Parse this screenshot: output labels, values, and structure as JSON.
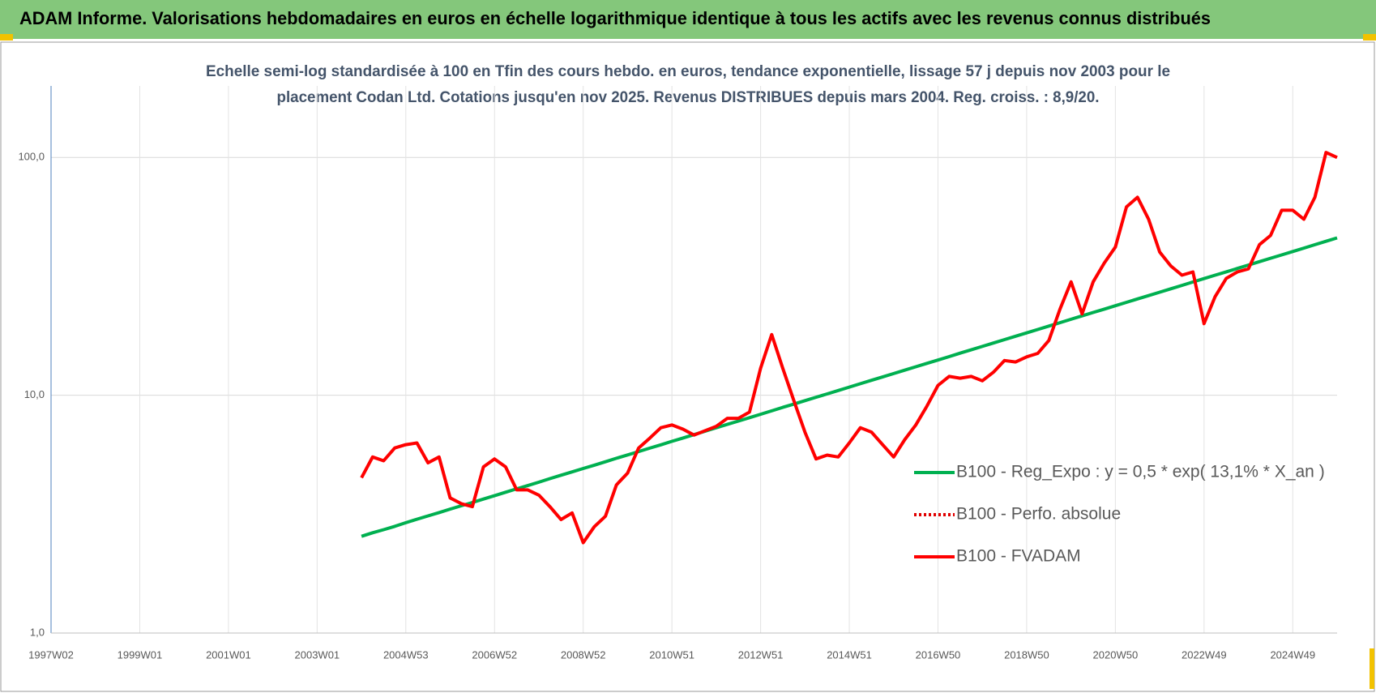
{
  "chart_data": {
    "type": "line",
    "title": "ADAM Informe. Valorisations hebdomadaires en euros en échelle logarithmique identique à tous les actifs avec les revenus connus distribués",
    "subtitle": [
      "Echelle semi-log standardisée à 100 en Tfin des cours hebdo. en euros, tendance exponentielle, lissage 57 j depuis nov 2003 pour le",
      "placement Codan Ltd. Cotations jusqu'en nov 2025. Revenus DISTRIBUES depuis mars 2004. Reg. croiss. : 8,9/20."
    ],
    "categories": [
      "1997W02",
      null,
      null,
      null,
      null,
      null,
      null,
      null,
      "1999W01",
      null,
      null,
      null,
      null,
      null,
      null,
      null,
      "2001W01",
      null,
      null,
      null,
      null,
      null,
      null,
      null,
      "2003W01",
      null,
      null,
      null,
      null,
      null,
      null,
      null,
      "2004W53",
      null,
      null,
      null,
      null,
      null,
      null,
      null,
      "2006W52",
      null,
      null,
      null,
      null,
      null,
      null,
      null,
      "2008W52",
      null,
      null,
      null,
      null,
      null,
      null,
      null,
      "2010W51",
      null,
      null,
      null,
      null,
      null,
      null,
      null,
      "2012W51",
      null,
      null,
      null,
      null,
      null,
      null,
      null,
      "2014W51",
      null,
      null,
      null,
      null,
      null,
      null,
      null,
      "2016W50",
      null,
      null,
      null,
      null,
      null,
      null,
      null,
      "2018W50",
      null,
      null,
      null,
      null,
      null,
      null,
      null,
      "2020W50",
      null,
      null,
      null,
      null,
      null,
      null,
      null,
      "2022W49",
      null,
      null,
      null,
      null,
      null,
      null,
      null,
      "2024W49",
      null,
      null,
      null,
      null
    ],
    "series": [
      {
        "name": "B100 - Reg_Expo : y = 0,5 * exp( 13,1% *  X_an )",
        "color": "#00b050",
        "dash": "solid",
        "values": [
          null,
          null,
          null,
          null,
          null,
          null,
          null,
          null,
          null,
          null,
          null,
          null,
          null,
          null,
          null,
          null,
          null,
          null,
          null,
          null,
          null,
          null,
          null,
          null,
          null,
          null,
          null,
          null,
          2.55,
          2.64,
          2.72,
          2.81,
          2.91,
          3.01,
          3.11,
          3.21,
          3.32,
          3.43,
          3.54,
          3.66,
          3.78,
          3.91,
          4.04,
          4.17,
          4.31,
          4.46,
          4.61,
          4.76,
          4.92,
          5.08,
          5.25,
          5.43,
          5.61,
          5.8,
          5.99,
          6.19,
          6.4,
          6.61,
          6.83,
          7.06,
          7.3,
          7.54,
          7.79,
          8.05,
          8.32,
          8.6,
          8.89,
          9.18,
          9.49,
          9.81,
          10.13,
          10.47,
          10.82,
          11.18,
          11.56,
          11.94,
          12.34,
          12.75,
          13.18,
          13.62,
          14.07,
          14.54,
          15.03,
          15.53,
          16.05,
          16.58,
          17.14,
          17.71,
          18.3,
          18.91,
          19.54,
          20.2,
          20.87,
          21.57,
          22.29,
          23.03,
          23.8,
          24.59,
          25.42,
          26.26,
          27.14,
          28.05,
          28.98,
          29.95,
          30.95,
          31.98,
          33.05,
          34.15,
          35.29,
          36.47,
          37.69,
          38.94,
          40.24,
          41.59,
          42.97,
          44.41,
          45.89
        ]
      },
      {
        "name": "B100 - Perfo. absolue",
        "color": "#e00000",
        "dash": "dot",
        "values": [
          null,
          null,
          null,
          null,
          null,
          null,
          null,
          null,
          null,
          null,
          null,
          null,
          null,
          null,
          null,
          null,
          null,
          null,
          null,
          null,
          null,
          null,
          null,
          null,
          null,
          null,
          null,
          null,
          null,
          null,
          null,
          null,
          null,
          null,
          null,
          null,
          null,
          null,
          null,
          null,
          null,
          null,
          null,
          null,
          null,
          null,
          null,
          null,
          null,
          null,
          null,
          null,
          null,
          null,
          null,
          null,
          null,
          null,
          null,
          null,
          null,
          null,
          null,
          null,
          null,
          null,
          null,
          null,
          null,
          null,
          null,
          null,
          null,
          null,
          null,
          null,
          null,
          null,
          null,
          null,
          null,
          null,
          null,
          null,
          null,
          null,
          null,
          null,
          null,
          null,
          null,
          null,
          null,
          null,
          null,
          null,
          null,
          null,
          null,
          null,
          null,
          null,
          null,
          null,
          null,
          null,
          null,
          null,
          null,
          null,
          null,
          null,
          null,
          null,
          null,
          null,
          null
        ]
      },
      {
        "name": "B100 - FVADAM",
        "color": "#ff0000",
        "dash": "solid",
        "values": [
          null,
          null,
          null,
          null,
          null,
          null,
          null,
          null,
          null,
          null,
          null,
          null,
          null,
          null,
          null,
          null,
          null,
          null,
          null,
          null,
          null,
          null,
          null,
          null,
          null,
          null,
          null,
          null,
          4.5,
          5.5,
          5.3,
          6.0,
          6.2,
          6.3,
          5.2,
          5.5,
          3.7,
          3.5,
          3.4,
          5.0,
          5.4,
          5.0,
          4.0,
          4.0,
          3.8,
          3.4,
          3.0,
          3.2,
          2.4,
          2.8,
          3.1,
          4.2,
          4.7,
          6.0,
          6.6,
          7.3,
          7.5,
          7.2,
          6.8,
          7.1,
          7.4,
          8.0,
          8.0,
          8.5,
          13,
          18,
          13,
          9.5,
          7.0,
          5.4,
          5.6,
          5.5,
          6.3,
          7.3,
          7.0,
          6.2,
          5.5,
          6.5,
          7.5,
          9.0,
          11.0,
          12.0,
          11.8,
          12.0,
          11.5,
          12.5,
          14,
          13.8,
          14.5,
          15,
          17,
          23,
          30,
          22,
          30,
          36,
          42,
          62,
          68,
          55,
          40,
          35,
          32,
          33,
          20,
          26,
          31,
          33,
          34,
          43,
          47,
          60,
          60,
          55,
          68,
          105,
          100
        ]
      }
    ],
    "log_scale": true,
    "ylim": [
      1,
      200
    ],
    "yticks": [
      {
        "value": 1,
        "label": "1,0"
      },
      {
        "value": 10,
        "label": "10,0"
      },
      {
        "value": 100,
        "label": "100,0"
      }
    ],
    "grid": true,
    "legend": "right"
  }
}
